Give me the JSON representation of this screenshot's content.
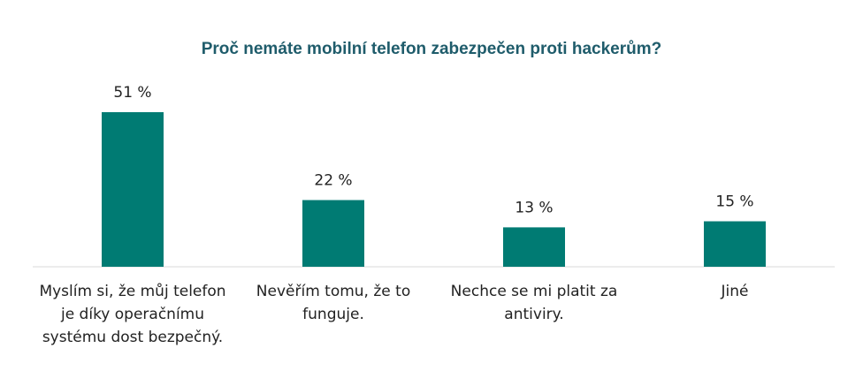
{
  "chart_data": {
    "type": "bar",
    "title": "Proč nemáte mobilní telefon zabezpečen proti hackerům?",
    "categories": [
      "Myslím si, že můj telefon je díky operačnímu systému dost bezpečný.",
      "Nevěřím tomu, že to funguje.",
      "Nechce se mi platit za antiviry.",
      "Jiné"
    ],
    "values": [
      51,
      22,
      13,
      15
    ],
    "value_labels": [
      "51 %",
      "22 %",
      "13 %",
      "15 %"
    ],
    "bar_color": "#007b73",
    "ylim": [
      0,
      51
    ],
    "grid": false,
    "legend": "none"
  }
}
